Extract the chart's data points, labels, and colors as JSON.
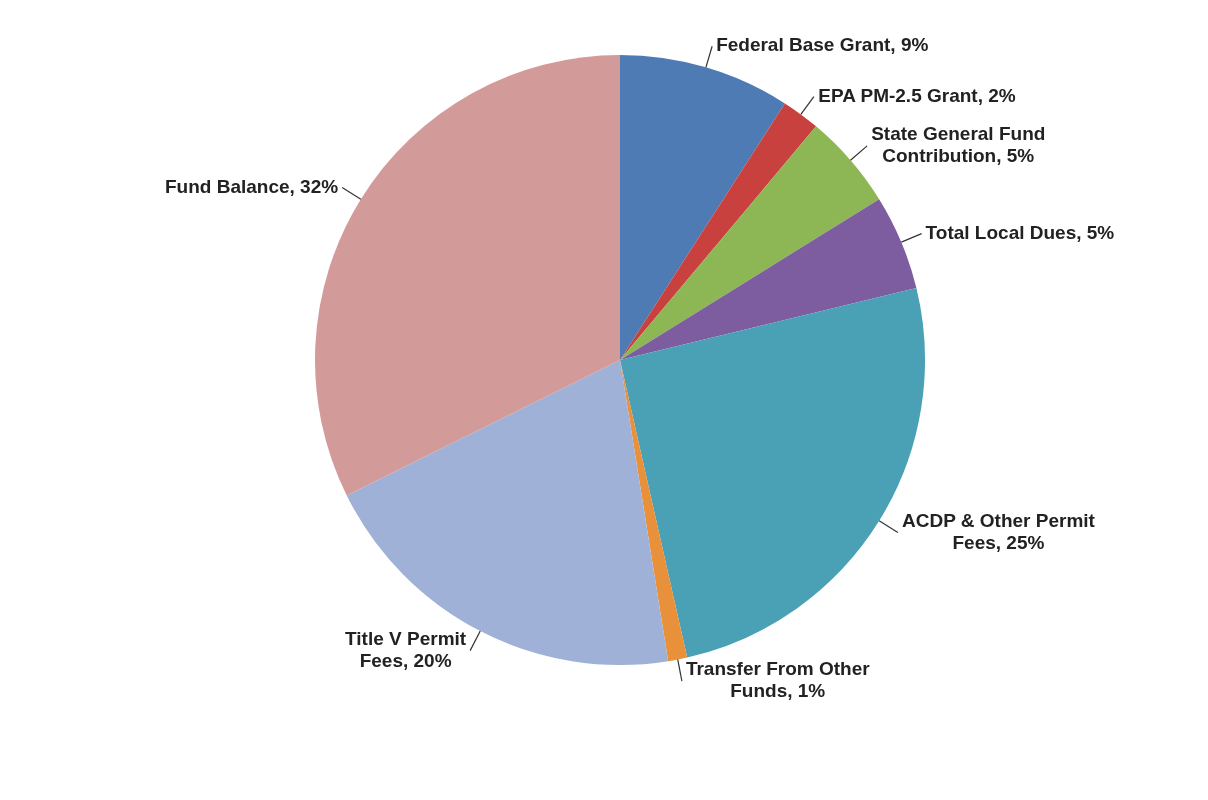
{
  "chart_data": {
    "type": "pie",
    "categories": [
      "Federal Base Grant",
      "EPA PM-2.5 Grant",
      "State General Fund Contribution",
      "Total Local Dues",
      "ACDP & Other Permit Fees",
      "Transfer From Other Funds",
      "Title V Permit Fees",
      "Fund Balance"
    ],
    "values": [
      9,
      2,
      5,
      5,
      25,
      1,
      20,
      32
    ],
    "value_labels": [
      "9%",
      "2%",
      "5%",
      "5%",
      "25%",
      "1%",
      "20%",
      "32%"
    ],
    "colors": [
      "#4f7bb5",
      "#c9413f",
      "#8db654",
      "#7d5da0",
      "#4aa0b5",
      "#e8913a",
      "#9fb1d6",
      "#d39a9a"
    ],
    "legend": false
  }
}
